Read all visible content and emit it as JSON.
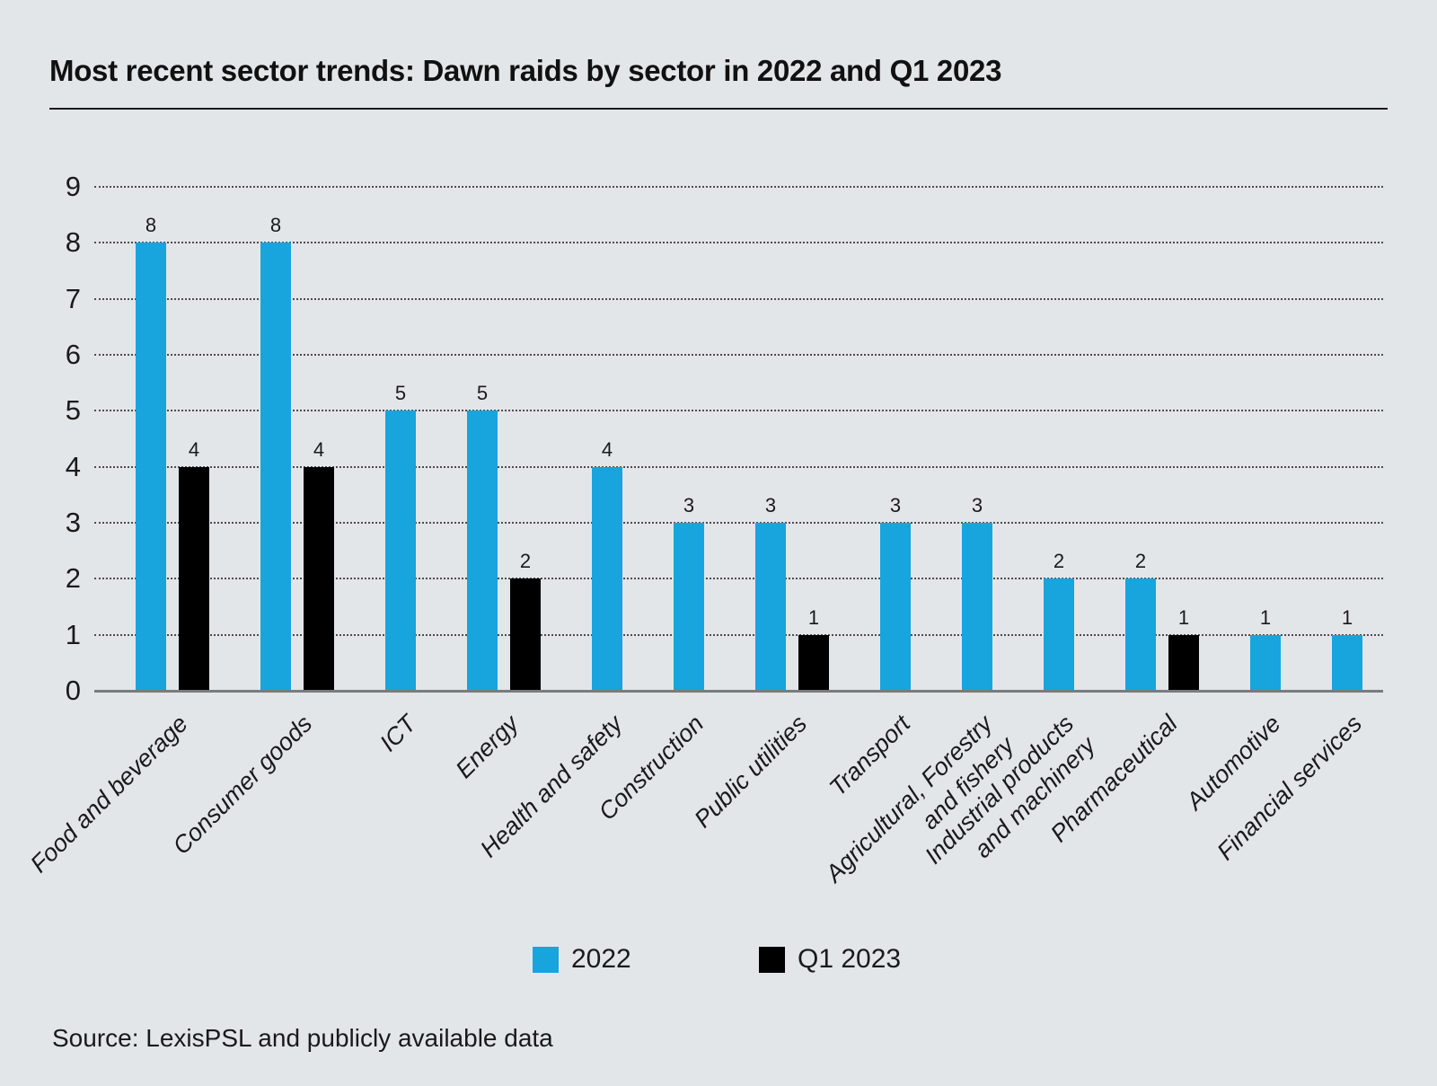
{
  "page": {
    "title": "Most recent sector trends: Dawn raids by sector in 2022 and Q1 2023",
    "source": "Source: LexisPSL and publicly available data",
    "background_color": "#E3E6E9",
    "text_color": "#1A1A1A",
    "gridline_color": "#4C4C4C",
    "axis_line_color": "#797C7E"
  },
  "legend": {
    "items": [
      {
        "label": "2022",
        "color": "#18A4DD"
      },
      {
        "label": "Q1 2023",
        "color": "#000000"
      }
    ]
  },
  "chart_data": {
    "type": "bar",
    "title": "Most recent sector trends: Dawn raids by sector in 2022 and Q1 2023",
    "categories": [
      "Food and beverage",
      "Consumer goods",
      "ICT",
      "Energy",
      "Health and safety",
      "Construction",
      "Public utilities",
      "Transport",
      "Agricultural, Forestry\nand fishery",
      "Industrial products\nand machinery",
      "Pharmaceutical",
      "Automotive",
      "Financial services"
    ],
    "series": [
      {
        "name": "2022",
        "color": "#18A4DD",
        "values": [
          8,
          8,
          5,
          5,
          4,
          3,
          3,
          3,
          3,
          2,
          2,
          1,
          1
        ]
      },
      {
        "name": "Q1 2023",
        "color": "#000000",
        "values": [
          4,
          4,
          null,
          2,
          null,
          null,
          1,
          null,
          null,
          null,
          1,
          null,
          null
        ]
      }
    ],
    "xlabel": "",
    "ylabel": "",
    "ylim": [
      0,
      9
    ],
    "yticks": [
      0,
      1,
      2,
      3,
      4,
      5,
      6,
      7,
      8,
      9
    ],
    "grid": "horizontal-dotted",
    "value_labels": true,
    "legend_position": "bottom",
    "source": "Source: LexisPSL and publicly available data"
  }
}
